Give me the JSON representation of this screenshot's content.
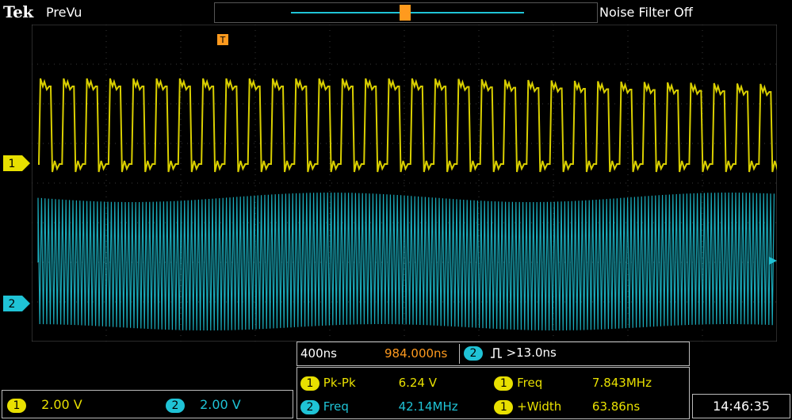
{
  "header": {
    "brand": "Tek",
    "acquisition_state": "PreVu",
    "noise_filter": "Noise Filter Off"
  },
  "markers": {
    "trigger_marker": "T",
    "ch1_label": "1",
    "ch2_label": "2"
  },
  "channels": [
    {
      "id": "1",
      "scale": "2.00 V",
      "color": "#e8e000"
    },
    {
      "id": "2",
      "scale": "2.00 V",
      "color": "#1fc3d6"
    }
  ],
  "horizontal": {
    "time_per_div": "400ns",
    "position": "984.000ns",
    "trigger_channel": "2",
    "trigger_condition": ">13.0ns"
  },
  "measurements": [
    {
      "channel": "1",
      "label": "Pk-Pk",
      "value": "6.24 V"
    },
    {
      "channel": "1",
      "label": "Freq",
      "value": "7.843MHz"
    },
    {
      "channel": "2",
      "label": "Freq",
      "value": "42.14MHz"
    },
    {
      "channel": "1",
      "label": "+Width",
      "value": "63.86ns"
    }
  ],
  "clock": "14:46:35"
}
